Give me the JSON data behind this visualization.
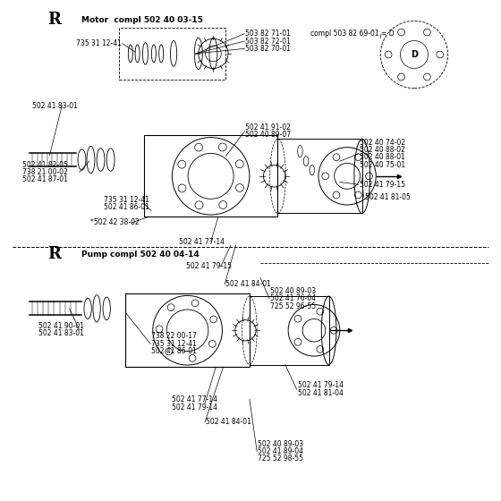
{
  "bg_color": "#ffffff",
  "motor_label": "R",
  "motor_title": "Motor  compl 502 40 03-15",
  "pump_label": "R",
  "pump_title": "Pump compl 502 40 04-14"
}
